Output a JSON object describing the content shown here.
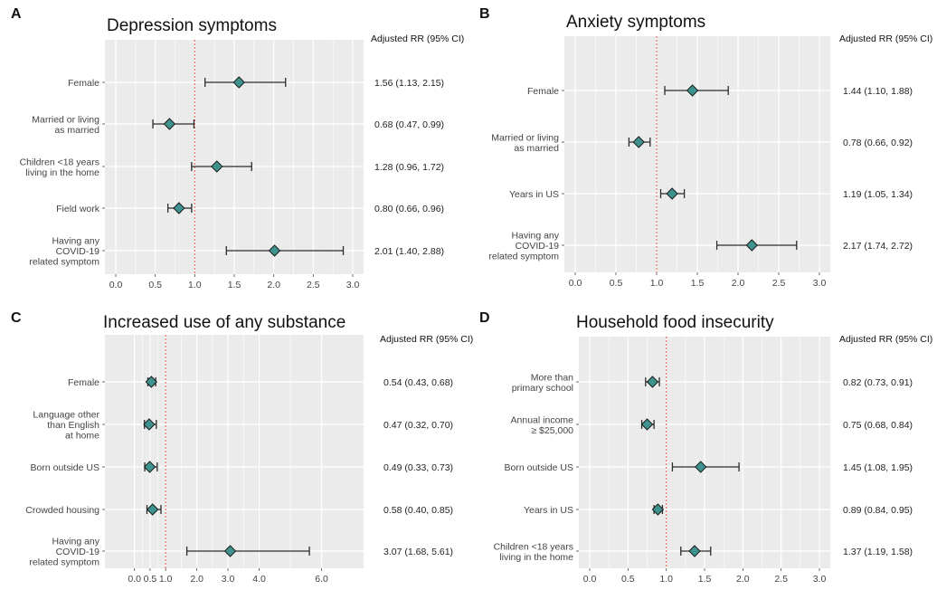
{
  "chart_data": [
    {
      "panel": "A",
      "title": "Depression symptoms",
      "type": "forest",
      "value_header": "Adjusted RR (95% CI)",
      "xlim": [
        0,
        3.0
      ],
      "x_ticks": [
        "0.0",
        "0.5",
        "1.0",
        "1.5",
        "2.0",
        "2.5",
        "3.0"
      ],
      "x_tick_values": [
        0,
        0.5,
        1.0,
        1.5,
        2.0,
        2.5,
        3.0
      ],
      "reference_line": 1.0,
      "rows": [
        {
          "label": [
            "Female"
          ],
          "rr": 1.56,
          "lo": 1.13,
          "hi": 2.15,
          "text": "1.56 (1.13, 2.15)"
        },
        {
          "label": [
            "Married or living",
            "as married"
          ],
          "rr": 0.68,
          "lo": 0.47,
          "hi": 0.99,
          "text": "0.68 (0.47, 0.99)"
        },
        {
          "label": [
            "Children <18 years",
            "living in the home"
          ],
          "rr": 1.28,
          "lo": 0.96,
          "hi": 1.72,
          "text": "1.28 (0.96, 1.72)"
        },
        {
          "label": [
            "Field work"
          ],
          "rr": 0.8,
          "lo": 0.66,
          "hi": 0.96,
          "text": "0.80 (0.66, 0.96)"
        },
        {
          "label": [
            "Having any",
            "COVID-19",
            "related symptom"
          ],
          "rr": 2.01,
          "lo": 1.4,
          "hi": 2.88,
          "text": "2.01 (1.40, 2.88)"
        }
      ]
    },
    {
      "panel": "B",
      "title": "Anxiety symptoms",
      "type": "forest",
      "value_header": "Adjusted RR (95% CI)",
      "xlim": [
        0,
        3.0
      ],
      "x_ticks": [
        "0.0",
        "0.5",
        "1.0",
        "1.5",
        "2.0",
        "2.5",
        "3.0"
      ],
      "x_tick_values": [
        0,
        0.5,
        1.0,
        1.5,
        2.0,
        2.5,
        3.0
      ],
      "reference_line": 1.0,
      "rows": [
        {
          "label": [
            "Female"
          ],
          "rr": 1.44,
          "lo": 1.1,
          "hi": 1.88,
          "text": "1.44 (1.10, 1.88)"
        },
        {
          "label": [
            "Married or living",
            "as married"
          ],
          "rr": 0.78,
          "lo": 0.66,
          "hi": 0.92,
          "text": "0.78 (0.66, 0.92)"
        },
        {
          "label": [
            "Years in US"
          ],
          "rr": 1.19,
          "lo": 1.05,
          "hi": 1.34,
          "text": "1.19 (1.05, 1.34)"
        },
        {
          "label": [
            "Having any",
            "COVID-19",
            "related symptom"
          ],
          "rr": 2.17,
          "lo": 1.74,
          "hi": 2.72,
          "text": "2.17 (1.74, 2.72)"
        }
      ]
    },
    {
      "panel": "C",
      "title": "Increased use of any substance",
      "type": "forest",
      "value_header": "Adjusted RR (95% CI)",
      "xlim": [
        -0.6,
        7.0
      ],
      "x_ticks": [
        "0.0",
        "0.5",
        "1.0",
        "2.0",
        "3.0",
        "4.0",
        "6.0"
      ],
      "x_tick_values": [
        0,
        0.5,
        1.0,
        2.0,
        3.0,
        4.0,
        6.0
      ],
      "reference_line": 1.0,
      "rows": [
        {
          "label": [
            "Female"
          ],
          "rr": 0.54,
          "lo": 0.43,
          "hi": 0.68,
          "text": "0.54 (0.43, 0.68)"
        },
        {
          "label": [
            "Language other",
            "than English",
            "at home"
          ],
          "rr": 0.47,
          "lo": 0.32,
          "hi": 0.7,
          "text": "0.47 (0.32, 0.70)"
        },
        {
          "label": [
            "Born outside US"
          ],
          "rr": 0.49,
          "lo": 0.33,
          "hi": 0.73,
          "text": "0.49 (0.33, 0.73)"
        },
        {
          "label": [
            "Crowded housing"
          ],
          "rr": 0.58,
          "lo": 0.4,
          "hi": 0.85,
          "text": "0.58 (0.40, 0.85)"
        },
        {
          "label": [
            "Having any",
            "COVID-19",
            "related symptom"
          ],
          "rr": 3.07,
          "lo": 1.68,
          "hi": 5.61,
          "text": "3.07 (1.68, 5.61)"
        }
      ]
    },
    {
      "panel": "D",
      "title": "Household food insecurity",
      "type": "forest",
      "value_header": "Adjusted RR (95% CI)",
      "xlim": [
        0,
        3.0
      ],
      "x_ticks": [
        "0.0",
        "0.5",
        "1.0",
        "1.5",
        "2.0",
        "2.5",
        "3.0"
      ],
      "x_tick_values": [
        0,
        0.5,
        1.0,
        1.5,
        2.0,
        2.5,
        3.0
      ],
      "reference_line": 1.0,
      "rows": [
        {
          "label": [
            "More than",
            "primary school"
          ],
          "rr": 0.82,
          "lo": 0.73,
          "hi": 0.91,
          "text": "0.82 (0.73, 0.91)"
        },
        {
          "label": [
            "Annual income",
            "≥ $25,000"
          ],
          "rr": 0.75,
          "lo": 0.68,
          "hi": 0.84,
          "text": "0.75 (0.68, 0.84)"
        },
        {
          "label": [
            "Born outside US"
          ],
          "rr": 1.45,
          "lo": 1.08,
          "hi": 1.95,
          "text": "1.45 (1.08, 1.95)"
        },
        {
          "label": [
            "Years in US"
          ],
          "rr": 0.89,
          "lo": 0.84,
          "hi": 0.95,
          "text": "0.89 (0.84, 0.95)"
        },
        {
          "label": [
            "Children <18 years",
            "living in the home"
          ],
          "rr": 1.37,
          "lo": 1.19,
          "hi": 1.58,
          "text": "1.37 (1.19, 1.58)"
        }
      ]
    }
  ],
  "colors": {
    "panel_background": "#ebebeb",
    "grid": "#ffffff",
    "marker_fill": "#3e938e",
    "marker_stroke": "#1c1c1c",
    "whisker": "#2b2b2b",
    "reference_line": "#e8705f"
  }
}
